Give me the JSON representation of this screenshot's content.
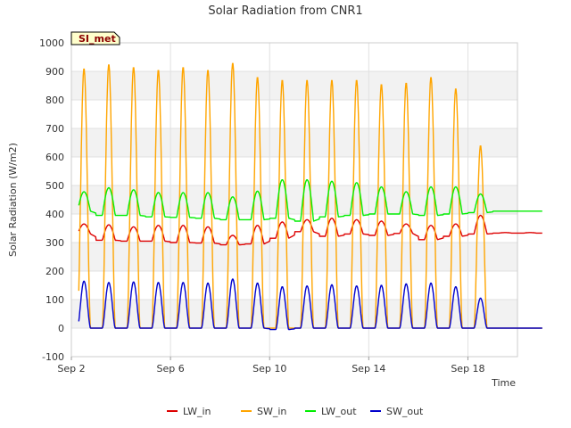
{
  "chart_data": {
    "type": "line",
    "title": "Solar Radiation from CNR1",
    "xlabel": "Time",
    "ylabel": "Solar Radiation (W/m2)",
    "badge": "SI_met",
    "ylim": [
      -100,
      1000
    ],
    "yticks": [
      -100,
      0,
      100,
      200,
      300,
      400,
      500,
      600,
      700,
      800,
      900,
      1000
    ],
    "xlim": [
      "2023-09-02",
      "2023-09-20"
    ],
    "xticks": [
      {
        "x": "2023-09-02",
        "label": "Sep 2"
      },
      {
        "x": "2023-09-06",
        "label": "Sep 6"
      },
      {
        "x": "2023-09-10",
        "label": "Sep 10"
      },
      {
        "x": "2023-09-14",
        "label": "Sep 14"
      },
      {
        "x": "2023-09-18",
        "label": "Sep 18"
      }
    ],
    "grid": true,
    "legend_position": "bottom",
    "days": [
      "2023-09-02",
      "2023-09-03",
      "2023-09-04",
      "2023-09-05",
      "2023-09-06",
      "2023-09-07",
      "2023-09-08",
      "2023-09-09",
      "2023-09-10",
      "2023-09-11",
      "2023-09-12",
      "2023-09-13",
      "2023-09-14",
      "2023-09-15",
      "2023-09-16",
      "2023-09-17",
      "2023-09-18",
      "2023-09-19"
    ],
    "series": [
      {
        "name": "LW_in",
        "color": "#dd0000",
        "night_values": [
          330,
          308,
          305,
          305,
          300,
          298,
          292,
          295,
          315,
          338,
          322,
          330,
          325,
          332,
          310,
          322,
          330,
          333
        ],
        "day_peaks": [
          365,
          362,
          355,
          360,
          360,
          355,
          325,
          360,
          372,
          380,
          385,
          380,
          375,
          365,
          360,
          365,
          395,
          335
        ]
      },
      {
        "name": "SW_in",
        "color": "#ffa500",
        "night_values": [
          0,
          0,
          0,
          0,
          0,
          0,
          0,
          0,
          0,
          0,
          0,
          0,
          0,
          0,
          0,
          0,
          0,
          0
        ],
        "day_peaks": [
          910,
          925,
          915,
          905,
          915,
          905,
          930,
          880,
          870,
          870,
          870,
          870,
          855,
          860,
          880,
          840,
          640,
          0
        ]
      },
      {
        "name": "LW_out",
        "color": "#00ee00",
        "night_values": [
          410,
          395,
          395,
          390,
          388,
          385,
          380,
          380,
          385,
          375,
          390,
          395,
          400,
          400,
          395,
          400,
          405,
          410
        ],
        "day_peaks": [
          478,
          492,
          485,
          475,
          475,
          475,
          460,
          480,
          520,
          520,
          515,
          510,
          495,
          478,
          495,
          495,
          470,
          410
        ]
      },
      {
        "name": "SW_out",
        "color": "#0000cc",
        "night_values": [
          0,
          0,
          0,
          0,
          0,
          0,
          0,
          0,
          -5,
          0,
          0,
          0,
          0,
          0,
          0,
          0,
          0,
          0
        ],
        "day_peaks": [
          165,
          160,
          162,
          160,
          160,
          158,
          172,
          158,
          145,
          148,
          152,
          148,
          150,
          155,
          158,
          145,
          105,
          0
        ]
      }
    ]
  }
}
